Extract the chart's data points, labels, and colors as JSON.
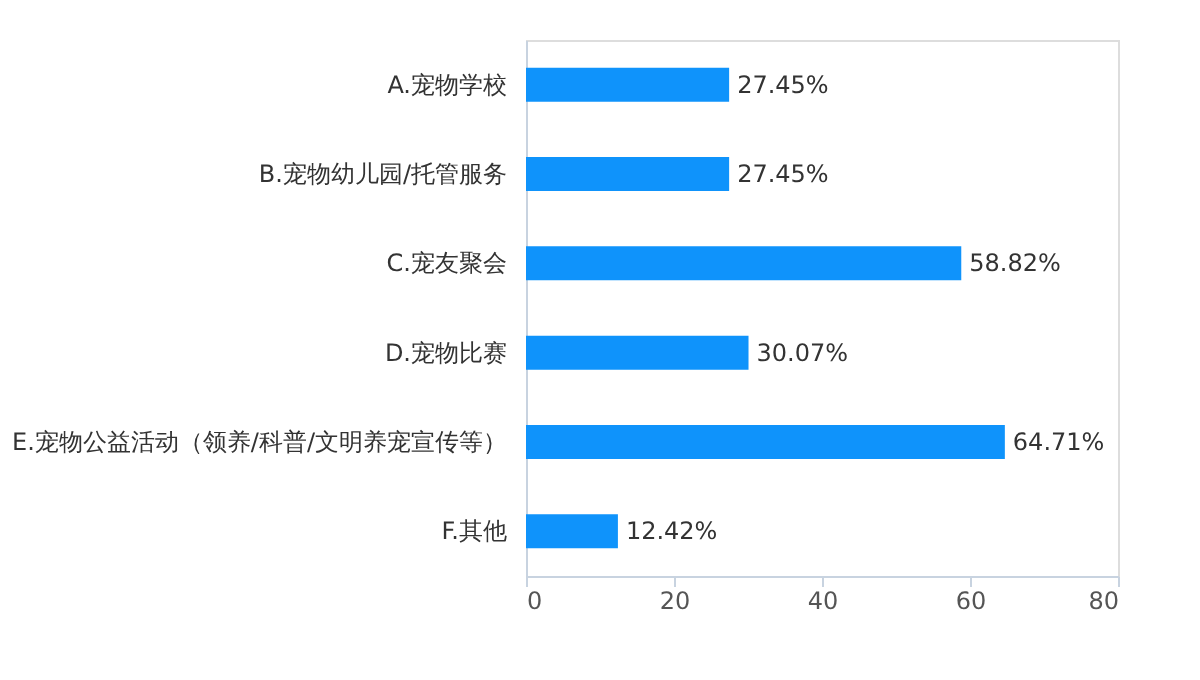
{
  "chart_data": {
    "type": "bar",
    "orientation": "horizontal",
    "categories": [
      "A.宠物学校",
      "B.宠物幼儿园/托管服务",
      "C.宠友聚会",
      "D.宠物比赛",
      "E.宠物公益活动（领养/科普/文明养宠宣传等）",
      "F.其他"
    ],
    "values": [
      27.45,
      27.45,
      58.82,
      30.07,
      64.71,
      12.42
    ],
    "value_labels": [
      "27.45%",
      "27.45%",
      "58.82%",
      "30.07%",
      "64.71%",
      "12.42%"
    ],
    "color": "#0f93fb",
    "xlim": [
      0,
      80
    ],
    "xticks": [
      0,
      20,
      40,
      60,
      80
    ],
    "grid": false
  }
}
